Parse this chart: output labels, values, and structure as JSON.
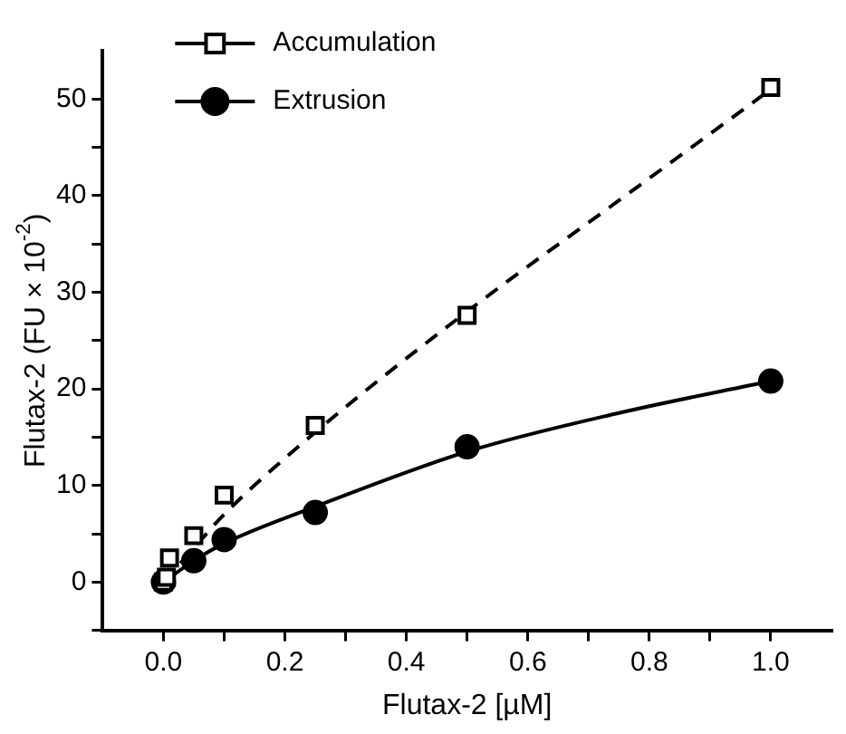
{
  "chart_data": {
    "type": "scatter",
    "xlabel": "Flutax-2 [µM]",
    "ylabel": "Flutax-2 (FU × 10$^{-2}$)",
    "xlim": [
      -0.1,
      1.1
    ],
    "ylim": [
      -5,
      55
    ],
    "xticks": [
      {
        "value": 0,
        "label": "0.0"
      },
      {
        "value": 0.1,
        "label": null
      },
      {
        "value": 0.2,
        "label": "0.2"
      },
      {
        "value": 0.3,
        "label": null
      },
      {
        "value": 0.4,
        "label": "0.4"
      },
      {
        "value": 0.5,
        "label": null
      },
      {
        "value": 0.6,
        "label": "0.6"
      },
      {
        "value": 0.7,
        "label": null
      },
      {
        "value": 0.8,
        "label": "0.8"
      },
      {
        "value": 0.9,
        "label": null
      },
      {
        "value": 1,
        "label": "1.0"
      }
    ],
    "yticks": [
      {
        "value": -5,
        "label": null
      },
      0,
      {
        "value": 5,
        "label": null
      },
      10,
      {
        "value": 15,
        "label": null
      },
      20,
      {
        "value": 25,
        "label": null
      },
      30,
      {
        "value": 35,
        "label": null
      },
      40,
      {
        "value": 45,
        "label": null
      },
      50
    ],
    "grid": false,
    "legend": "top left",
    "series": [
      {
        "name": "Accumulation",
        "type": "scatter",
        "marker": "square",
        "color": "#000000",
        "x": [
          0,
          0.005,
          0.01,
          0.05,
          0.1,
          0.25,
          0.5,
          1.0
        ],
        "values": [
          0,
          0.5,
          2.5,
          4.8,
          9,
          16.2,
          27.6,
          51.2
        ]
      },
      {
        "name": "Extrusion",
        "type": "scatter",
        "marker": "circle",
        "color": "#000000",
        "x": [
          0,
          0.01,
          0.05,
          0.1,
          0.25,
          0.5,
          1.0
        ],
        "values": [
          0,
          null,
          2.2,
          4.4,
          7.2,
          14,
          20.8
        ]
      },
      {
        "type": "line",
        "marker": "none",
        "line_style": "dashed",
        "color": "#000000",
        "x": [
          0,
          0.05,
          0.1,
          0.25,
          0.5,
          0.75,
          1.0
        ],
        "values": [
          0,
          3.5,
          7,
          15.5,
          28,
          39.5,
          51
        ]
      },
      {
        "type": "line",
        "marker": "none",
        "line_style": "solid",
        "color": "#000000",
        "x": [
          0,
          0.05,
          0.1,
          0.25,
          0.5,
          0.75,
          1.0
        ],
        "values": [
          0,
          2.2,
          4,
          7.8,
          13.5,
          17.5,
          20.8
        ]
      }
    ]
  }
}
